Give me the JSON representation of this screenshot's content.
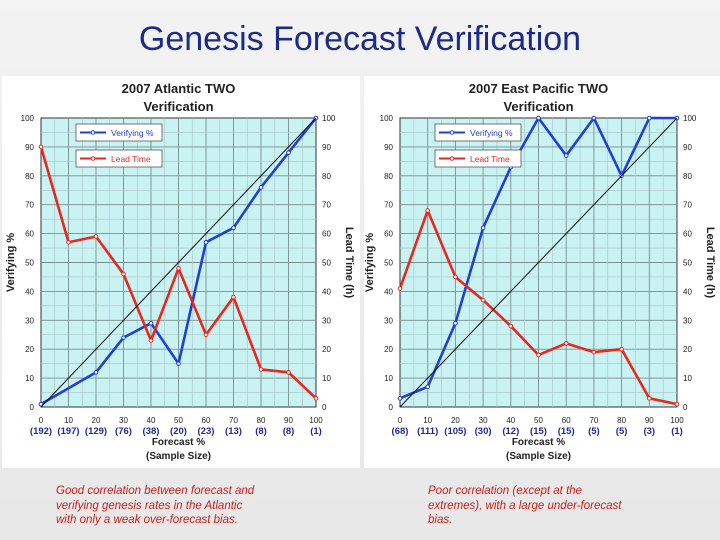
{
  "page_title": "Genesis Forecast Verification",
  "colors": {
    "title": "#1c2a8a",
    "verify": "#1f3fd6",
    "lead": "#e8281f",
    "plot_bg": "#c9f2f2",
    "caption": "#c8201c"
  },
  "chart_data": [
    {
      "type": "line",
      "title_line1": "2007 Atlantic TWO",
      "title_line2": "Verification",
      "xlabel": "Forecast %",
      "xlabel2": "(Sample Size)",
      "ylabel_left": "Verifying %",
      "ylabel_right": "Lead Time (h)",
      "xlim": [
        0,
        100
      ],
      "ylim": [
        0,
        100
      ],
      "xticks": [
        "0",
        "10",
        "20",
        "30",
        "40",
        "50",
        "60",
        "70",
        "80",
        "90",
        "100"
      ],
      "yticks": [
        "0",
        "10",
        "20",
        "30",
        "40",
        "50",
        "60",
        "70",
        "80",
        "90",
        "100"
      ],
      "sample_sizes": [
        "(192)",
        "(197)",
        "(129)",
        "(76)",
        "(38)",
        "(20)",
        "(23)",
        "(13)",
        "(8)",
        "(8)",
        "(1)"
      ],
      "legend": [
        "Verifying %",
        "Lead Time"
      ],
      "series": [
        {
          "name": "Verifying %",
          "x": [
            0,
            20,
            30,
            40,
            50,
            60,
            70,
            80,
            90,
            100
          ],
          "values": [
            1,
            12,
            24,
            29,
            15,
            57,
            62,
            76,
            88,
            100
          ]
        },
        {
          "name": "Lead Time",
          "x": [
            0,
            10,
            20,
            30,
            40,
            50,
            60,
            70,
            80,
            90,
            100
          ],
          "values": [
            90,
            57,
            59,
            46,
            23,
            48,
            25,
            38,
            13,
            12,
            3
          ]
        },
        {
          "name": "Perfect reliability",
          "x": [
            0,
            100
          ],
          "values": [
            0,
            100
          ]
        }
      ]
    },
    {
      "type": "line",
      "title_line1": "2007 East Pacific TWO",
      "title_line2": "Verification",
      "xlabel": "Forecast %",
      "xlabel2": "(Sample Size)",
      "ylabel_left": "Verifying %",
      "ylabel_right": "Lead Time (h)",
      "xlim": [
        0,
        100
      ],
      "ylim": [
        0,
        100
      ],
      "xticks": [
        "0",
        "10",
        "20",
        "30",
        "40",
        "50",
        "60",
        "70",
        "80",
        "90",
        "100"
      ],
      "yticks": [
        "0",
        "10",
        "20",
        "30",
        "40",
        "50",
        "60",
        "70",
        "80",
        "90",
        "100"
      ],
      "sample_sizes": [
        "(68)",
        "(111)",
        "(105)",
        "(30)",
        "(12)",
        "(15)",
        "(15)",
        "(5)",
        "(5)",
        "(3)",
        "(1)"
      ],
      "legend": [
        "Verifying %",
        "Lead Time"
      ],
      "series": [
        {
          "name": "Verifying %",
          "x": [
            0,
            10,
            20,
            30,
            40,
            50,
            60,
            70,
            80,
            90,
            100
          ],
          "values": [
            3,
            7,
            29,
            62,
            83,
            100,
            87,
            100,
            80,
            100,
            100
          ]
        },
        {
          "name": "Lead Time",
          "x": [
            0,
            10,
            20,
            30,
            40,
            50,
            60,
            70,
            80,
            90,
            100
          ],
          "values": [
            41,
            68,
            45,
            37,
            28,
            18,
            22,
            19,
            20,
            3,
            1
          ]
        },
        {
          "name": "Perfect reliability",
          "x": [
            0,
            100
          ],
          "values": [
            0,
            100
          ]
        }
      ]
    }
  ],
  "captions": {
    "left": [
      "Good correlation between forecast and",
      "verifying genesis rates in the Atlantic",
      "with only a weak over-forecast bias."
    ],
    "right": [
      "Poor correlation (except at the",
      "extremes), with a large under-forecast",
      "bias."
    ]
  }
}
